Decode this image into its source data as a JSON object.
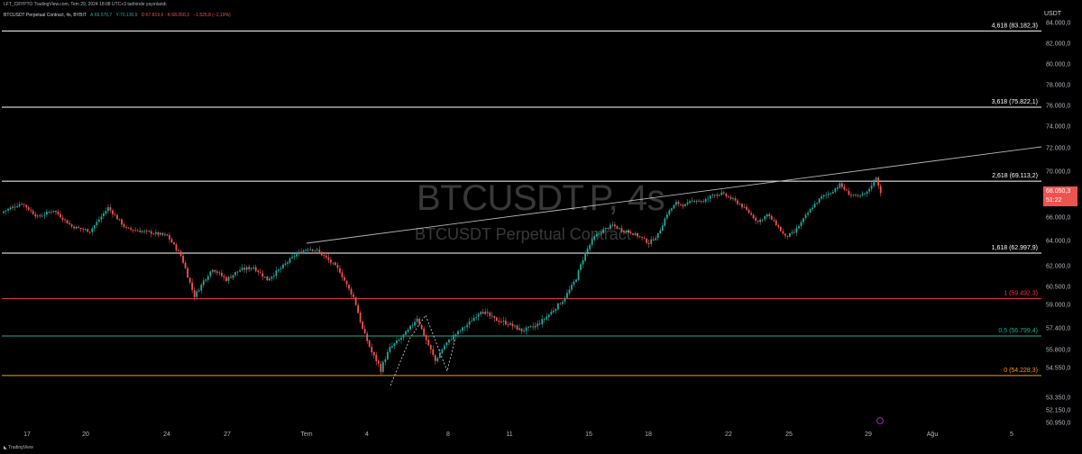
{
  "header": {
    "top_line": "LFT_CRYPTO TradingView.com, Tem 29, 2024 18:08 UTC+3 tarihinde yayınlandı",
    "symbol_line": "BTCUSDT Perpetual Contract, 4s, BYBIT",
    "ohlc": {
      "open": "A:69.576,7",
      "high": "Y:70.130,9",
      "low": "D:67.819,6",
      "close": "K:68.050,3",
      "change": "−1.525,8 (−2,19%)"
    }
  },
  "watermark": {
    "symbol": "BTCUSDT.P, 4s",
    "description": "BTCUSDT Perpetual Contract"
  },
  "footer": {
    "brand": "TradingView"
  },
  "price_axis": {
    "unit": "USDT",
    "last_price": "68.050,3",
    "countdown": "51:22"
  },
  "colors": {
    "background": "#000000",
    "up": "#26a69a",
    "down": "#ef5350",
    "fib_white": "#ffffff",
    "fib_red": "#f23645",
    "fib_teal": "#22ab94",
    "fib_orange": "#ff9800"
  },
  "chart_data": {
    "type": "candlestick",
    "y_axis": {
      "ticks": [
        50950,
        52150,
        53350,
        54550,
        55800,
        57400,
        59000,
        60500,
        62000,
        64000,
        66000,
        68000,
        70000,
        72000,
        74000,
        76000,
        78000,
        80000,
        82000,
        84000
      ],
      "tick_labels": [
        "50.950,0",
        "52.150,0",
        "53.350,0",
        "54.550,0",
        "55.800,0",
        "57.400,0",
        "59.000,0",
        "60.500,0",
        "62.000,0",
        "64.000,0",
        "66.000,0",
        "68.000,0",
        "70.000,0",
        "72.000,0",
        "74.000,0",
        "76.000,0",
        "78.000,0",
        "80.000,0",
        "82.000,0",
        "84.000,0"
      ]
    },
    "x_axis": {
      "tick_labels": [
        "17",
        "20",
        "24",
        "27",
        "Tem",
        "4",
        "8",
        "11",
        "15",
        "18",
        "22",
        "25",
        "29",
        "Ağu",
        "5"
      ]
    },
    "fib_levels": [
      {
        "label": "4,618 (83.182,3)",
        "value": 83182.3,
        "color": "#ffffff"
      },
      {
        "label": "3,618 (75.822,1)",
        "value": 75822.1,
        "color": "#ffffff"
      },
      {
        "label": "2,618 (69.113,2)",
        "value": 69113.2,
        "color": "#ffffff"
      },
      {
        "label": "1,618 (62.997,9)",
        "value": 62997.9,
        "color": "#ffffff"
      },
      {
        "label": "1 (59.492,3)",
        "value": 59492.3,
        "color": "#f23645"
      },
      {
        "label": "0,5 (56.799,4)",
        "value": 56799.4,
        "color": "#22ab94"
      },
      {
        "label": "0 (54.228,3)",
        "value": 54228.3,
        "color": "#ff9800"
      }
    ],
    "last_price": 68050.3,
    "close_path": [
      [
        0,
        66500
      ],
      [
        8,
        67200
      ],
      [
        15,
        66000
      ],
      [
        22,
        66600
      ],
      [
        30,
        65200
      ],
      [
        38,
        64800
      ],
      [
        46,
        66800
      ],
      [
        54,
        65000
      ],
      [
        64,
        64700
      ],
      [
        72,
        64400
      ],
      [
        78,
        62800
      ],
      [
        80,
        61800
      ],
      [
        84,
        59700
      ],
      [
        88,
        60900
      ],
      [
        92,
        61800
      ],
      [
        98,
        61000
      ],
      [
        104,
        61700
      ],
      [
        110,
        61900
      ],
      [
        116,
        61000
      ],
      [
        122,
        61800
      ],
      [
        128,
        62800
      ],
      [
        134,
        63400
      ],
      [
        138,
        63200
      ],
      [
        142,
        62600
      ],
      [
        148,
        61600
      ],
      [
        154,
        59600
      ],
      [
        158,
        57300
      ],
      [
        162,
        55600
      ],
      [
        166,
        54500
      ],
      [
        170,
        55900
      ],
      [
        174,
        56500
      ],
      [
        178,
        57200
      ],
      [
        182,
        58100
      ],
      [
        186,
        56500
      ],
      [
        190,
        55000
      ],
      [
        194,
        56100
      ],
      [
        198,
        56800
      ],
      [
        204,
        57600
      ],
      [
        210,
        58600
      ],
      [
        216,
        58000
      ],
      [
        222,
        57700
      ],
      [
        228,
        57200
      ],
      [
        234,
        57500
      ],
      [
        240,
        58300
      ],
      [
        246,
        59300
      ],
      [
        252,
        61100
      ],
      [
        256,
        63000
      ],
      [
        260,
        64300
      ],
      [
        264,
        64900
      ],
      [
        268,
        65300
      ],
      [
        272,
        64900
      ],
      [
        276,
        64700
      ],
      [
        280,
        64300
      ],
      [
        284,
        63800
      ],
      [
        288,
        64500
      ],
      [
        292,
        66300
      ],
      [
        296,
        67200
      ],
      [
        300,
        67000
      ],
      [
        304,
        67500
      ],
      [
        308,
        67300
      ],
      [
        312,
        67900
      ],
      [
        316,
        68000
      ],
      [
        320,
        67600
      ],
      [
        324,
        67100
      ],
      [
        328,
        66400
      ],
      [
        332,
        65600
      ],
      [
        336,
        66200
      ],
      [
        340,
        65400
      ],
      [
        344,
        64300
      ],
      [
        348,
        64700
      ],
      [
        352,
        65800
      ],
      [
        356,
        66900
      ],
      [
        360,
        67700
      ],
      [
        364,
        68100
      ],
      [
        368,
        68800
      ],
      [
        372,
        68000
      ],
      [
        376,
        67700
      ],
      [
        380,
        68100
      ],
      [
        384,
        69500
      ],
      [
        386,
        68050
      ]
    ]
  }
}
